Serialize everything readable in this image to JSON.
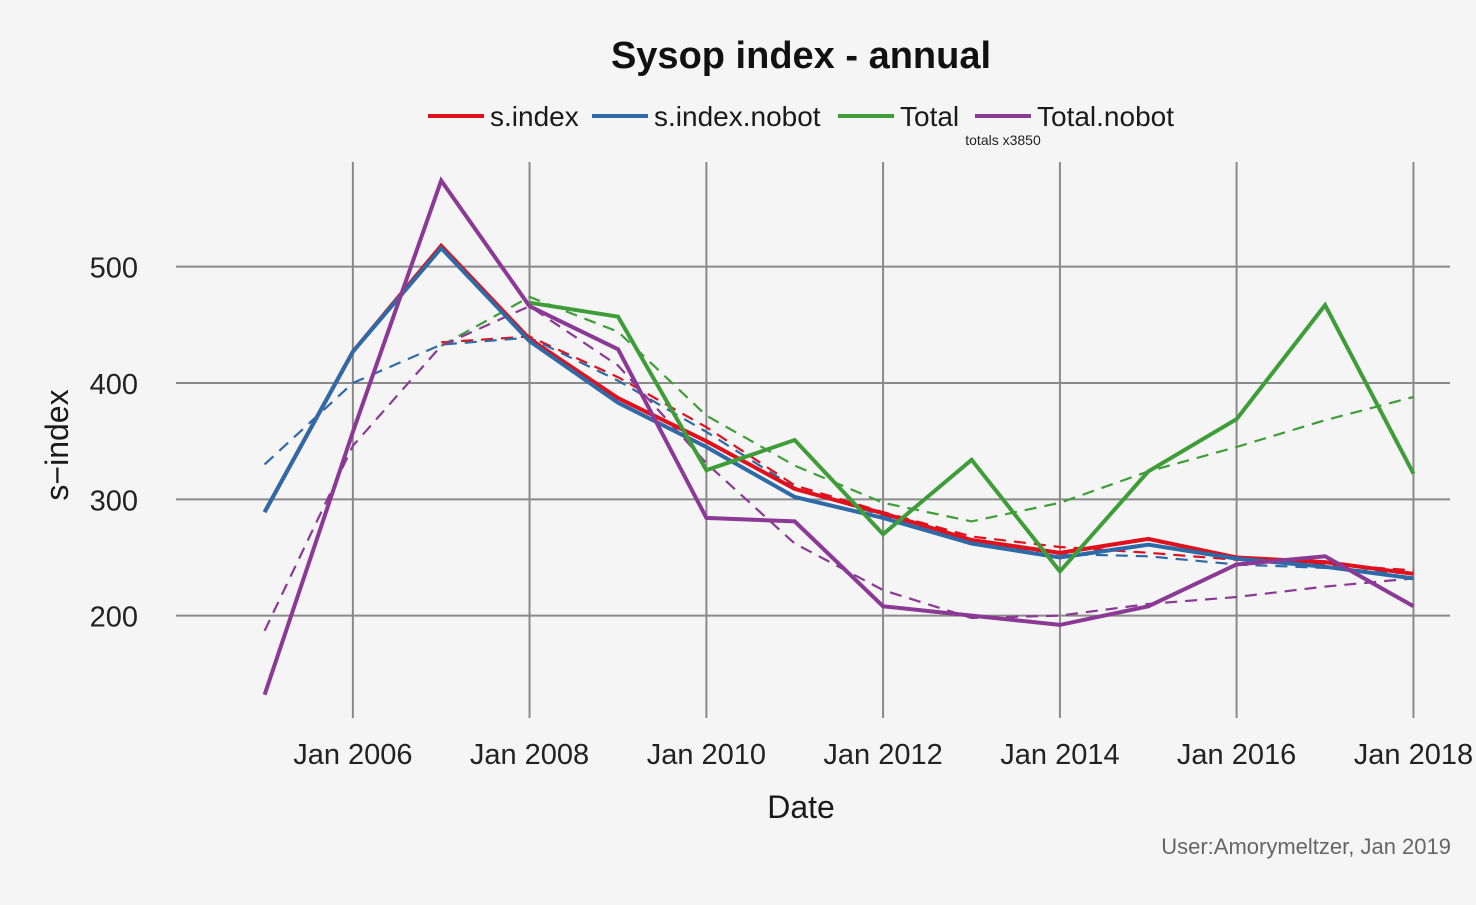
{
  "chart_data": {
    "type": "line",
    "title": "Sysop index - annual",
    "subtitle": "totals x3850",
    "xlabel": "Date",
    "ylabel": "s−index",
    "caption": "User:Amorymeltzer, Jan 2019",
    "x": [
      "2005-01-01",
      "2006-01-01",
      "2007-01-01",
      "2008-01-01",
      "2009-01-01",
      "2010-01-01",
      "2011-01-01",
      "2012-01-01",
      "2013-01-01",
      "2014-01-01",
      "2015-01-01",
      "2016-01-01",
      "2017-01-01",
      "2018-01-01"
    ],
    "xticks": [
      "Jan 2006",
      "Jan 2008",
      "Jan 2010",
      "Jan 2012",
      "Jan 2014",
      "Jan 2016",
      "Jan 2018"
    ],
    "xtick_dates": [
      "2006-01-01",
      "2008-01-01",
      "2010-01-01",
      "2012-01-01",
      "2014-01-01",
      "2016-01-01",
      "2018-01-01"
    ],
    "xlim": [
      "2004-01-01",
      "2018-06-01"
    ],
    "yticks": [
      200,
      300,
      400,
      500
    ],
    "ylim": [
      112,
      590
    ],
    "grid": true,
    "legend_position": "top",
    "series": [
      {
        "name": "s.index",
        "color": "#e0101c",
        "values": [
          289,
          427,
          518,
          438,
          387,
          350,
          309,
          288,
          265,
          254,
          266,
          250,
          246,
          236
        ],
        "trend": [
          null,
          null,
          435,
          440,
          405,
          362,
          312,
          289,
          268,
          259,
          254,
          248,
          244,
          239
        ]
      },
      {
        "name": "s.index.nobot",
        "color": "#2e6aa8",
        "values": [
          289,
          427,
          516,
          436,
          383,
          345,
          302,
          284,
          262,
          250,
          261,
          249,
          242,
          232
        ],
        "trend": [
          330,
          400,
          433,
          439,
          402,
          358,
          310,
          286,
          264,
          253,
          251,
          244,
          241,
          236
        ]
      },
      {
        "name": "Total",
        "color": "#3e9d38",
        "values": [
          null,
          null,
          null,
          469,
          457,
          325,
          351,
          270,
          334,
          238,
          324,
          369,
          467,
          322
        ],
        "trend": [
          null,
          null,
          432,
          474,
          444,
          372,
          329,
          297,
          281,
          297,
          324,
          345,
          368,
          388
        ]
      },
      {
        "name": "Total.nobot",
        "color": "#8a3994",
        "values": [
          132,
          358,
          574,
          466,
          429,
          284,
          281,
          208,
          200,
          192,
          208,
          244,
          251,
          208
        ],
        "trend": [
          187,
          346,
          432,
          466,
          415,
          331,
          262,
          222,
          198,
          200,
          210,
          216,
          225,
          232
        ]
      }
    ]
  }
}
